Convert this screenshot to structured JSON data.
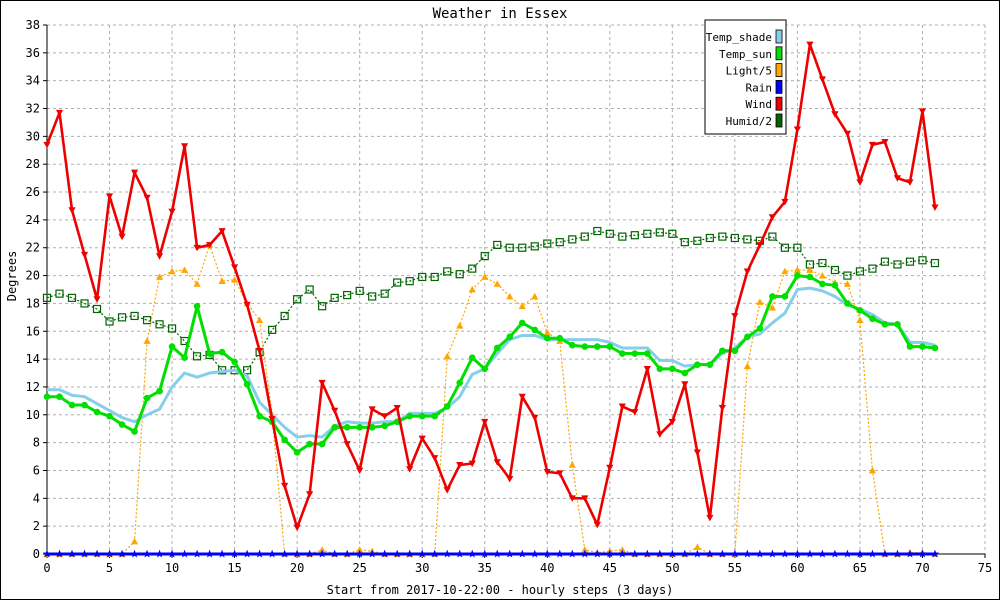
{
  "chart_data": {
    "type": "line",
    "title": "Weather in Essex",
    "xlabel": "Start from 2017-10-22:00 - hourly steps (3 days)",
    "ylabel": "Degrees",
    "xlim": [
      0,
      75
    ],
    "ylim": [
      0,
      38
    ],
    "x_ticks": [
      "0",
      "5",
      "10",
      "15",
      "20",
      "25",
      "30",
      "35",
      "40",
      "45",
      "50",
      "55",
      "60",
      "65",
      "70",
      "75"
    ],
    "y_ticks": [
      "0",
      "2",
      "4",
      "6",
      "8",
      "10",
      "12",
      "14",
      "16",
      "18",
      "20",
      "22",
      "24",
      "26",
      "28",
      "30",
      "32",
      "34",
      "36",
      "38"
    ],
    "grid": true,
    "legend_position": "top-right",
    "x": [
      0,
      1,
      2,
      3,
      4,
      5,
      6,
      7,
      8,
      9,
      10,
      11,
      12,
      13,
      14,
      15,
      16,
      17,
      18,
      19,
      20,
      21,
      22,
      23,
      24,
      25,
      26,
      27,
      28,
      29,
      30,
      31,
      32,
      33,
      34,
      35,
      36,
      37,
      38,
      39,
      40,
      41,
      42,
      43,
      44,
      45,
      46,
      47,
      48,
      49,
      50,
      51,
      52,
      53,
      54,
      55,
      56,
      57,
      58,
      59,
      60,
      61,
      62,
      63,
      64,
      65,
      66,
      67,
      68,
      69,
      70,
      71
    ],
    "series": [
      {
        "name": "Temp_shade",
        "color": "#87CEEB",
        "style": "thick",
        "values": [
          11.8,
          11.8,
          11.4,
          11.3,
          10.8,
          10.3,
          9.8,
          9.5,
          10.0,
          10.4,
          12.0,
          13.0,
          12.7,
          13.0,
          13.1,
          13.2,
          12.8,
          10.9,
          10.0,
          9.1,
          8.4,
          8.5,
          8.4,
          9.2,
          9.5,
          9.4,
          9.4,
          9.5,
          9.5,
          10.1,
          10.1,
          10.1,
          10.5,
          11.3,
          12.9,
          13.3,
          14.4,
          15.4,
          15.7,
          15.7,
          15.4,
          15.4,
          15.4,
          15.4,
          15.4,
          15.2,
          14.8,
          14.8,
          14.8,
          13.9,
          13.9,
          13.5,
          13.6,
          13.6,
          14.4,
          14.8,
          15.6,
          15.8,
          16.6,
          17.3,
          19.0,
          19.1,
          18.9,
          18.5,
          17.9,
          17.6,
          17.2,
          16.6,
          16.5,
          15.2,
          15.2,
          15.0
        ]
      },
      {
        "name": "Temp_sun",
        "color": "#00E000",
        "style": "thick-dots",
        "values": [
          11.3,
          11.3,
          10.7,
          10.7,
          10.2,
          9.9,
          9.3,
          8.8,
          11.2,
          11.7,
          14.9,
          14.1,
          17.8,
          14.4,
          14.5,
          13.8,
          12.2,
          9.9,
          9.5,
          8.2,
          7.3,
          7.9,
          7.9,
          9.1,
          9.1,
          9.1,
          9.1,
          9.2,
          9.5,
          9.9,
          9.9,
          9.9,
          10.6,
          12.3,
          14.1,
          13.3,
          14.8,
          15.6,
          16.6,
          16.1,
          15.5,
          15.5,
          15.0,
          14.9,
          14.9,
          14.9,
          14.4,
          14.4,
          14.4,
          13.3,
          13.3,
          13.0,
          13.6,
          13.6,
          14.6,
          14.6,
          15.6,
          16.2,
          18.5,
          18.5,
          20.0,
          19.9,
          19.4,
          19.3,
          18.0,
          17.5,
          16.9,
          16.5,
          16.5,
          14.9,
          14.9,
          14.8
        ]
      },
      {
        "name": "Light/5",
        "color": "#FFA500",
        "style": "dotted-triangles",
        "values": [
          0,
          0,
          0,
          0,
          0,
          0,
          0,
          0.9,
          15.3,
          19.9,
          20.3,
          20.4,
          19.4,
          22.2,
          19.6,
          19.7,
          18.0,
          16.8,
          10.0,
          0,
          0,
          0,
          0.3,
          0,
          0,
          0.3,
          0.2,
          0,
          0,
          0,
          0,
          0,
          14.2,
          16.4,
          19.0,
          19.9,
          19.4,
          18.5,
          17.8,
          18.5,
          15.9,
          15.3,
          6.4,
          0.3,
          0.1,
          0.2,
          0.3,
          0,
          0,
          0,
          0,
          0,
          0.5,
          0,
          0,
          0,
          13.5,
          18.1,
          17.7,
          20.3,
          20.4,
          20.4,
          20.0,
          19.5,
          19.4,
          16.8,
          6.0,
          0,
          0,
          0.1,
          0.1,
          0
        ]
      },
      {
        "name": "Rain",
        "color": "#0000FF",
        "style": "thick-stars",
        "values": [
          0,
          0,
          0,
          0,
          0,
          0,
          0,
          0,
          0,
          0,
          0,
          0,
          0,
          0,
          0,
          0,
          0,
          0,
          0,
          0,
          0,
          0,
          0,
          0,
          0,
          0,
          0,
          0,
          0,
          0,
          0,
          0,
          0,
          0,
          0,
          0,
          0,
          0,
          0,
          0,
          0,
          0,
          0,
          0,
          0,
          0,
          0,
          0,
          0,
          0,
          0,
          0,
          0,
          0,
          0,
          0,
          0,
          0,
          0,
          0,
          0,
          0,
          0,
          0,
          0,
          0,
          0,
          0,
          0,
          0,
          0,
          0
        ]
      },
      {
        "name": "Wind",
        "color": "#EE0000",
        "style": "thick-triangles",
        "values": [
          29.4,
          31.7,
          24.7,
          21.5,
          18.3,
          25.7,
          22.8,
          27.4,
          25.6,
          21.4,
          24.6,
          29.3,
          22.0,
          22.2,
          23.2,
          20.6,
          17.9,
          14.6,
          9.7,
          4.9,
          1.9,
          4.3,
          12.3,
          10.3,
          7.9,
          6.0,
          10.4,
          9.9,
          10.5,
          6.1,
          8.3,
          6.9,
          4.6,
          6.4,
          6.5,
          9.5,
          6.6,
          5.4,
          11.3,
          9.8,
          5.9,
          5.8,
          4.0,
          4.0,
          2.1,
          6.2,
          10.6,
          10.2,
          13.3,
          8.6,
          9.5,
          12.2,
          7.3,
          2.6,
          10.5,
          17.1,
          20.3,
          22.2,
          24.2,
          25.3,
          30.5,
          36.6,
          34.1,
          31.6,
          30.2,
          26.7,
          29.4,
          29.6,
          27.0,
          26.7,
          31.8,
          24.9
        ]
      },
      {
        "name": "Humid/2",
        "color": "#006400",
        "style": "dotted-squares",
        "values": [
          18.4,
          18.7,
          18.4,
          18.0,
          17.6,
          16.7,
          17.0,
          17.1,
          16.8,
          16.5,
          16.2,
          15.3,
          14.2,
          14.3,
          13.2,
          13.2,
          13.2,
          14.5,
          16.1,
          17.1,
          18.3,
          19.0,
          17.8,
          18.4,
          18.6,
          18.9,
          18.5,
          18.7,
          19.5,
          19.6,
          19.9,
          19.9,
          20.3,
          20.1,
          20.5,
          21.4,
          22.2,
          22.0,
          22.0,
          22.1,
          22.3,
          22.4,
          22.6,
          22.8,
          23.2,
          23.0,
          22.8,
          22.9,
          23.0,
          23.1,
          23.0,
          22.4,
          22.5,
          22.7,
          22.8,
          22.7,
          22.6,
          22.5,
          22.8,
          22.0,
          22.0,
          20.8,
          20.9,
          20.4,
          20.0,
          20.3,
          20.5,
          21.0,
          20.8,
          21.0,
          21.1,
          20.9
        ]
      }
    ]
  }
}
